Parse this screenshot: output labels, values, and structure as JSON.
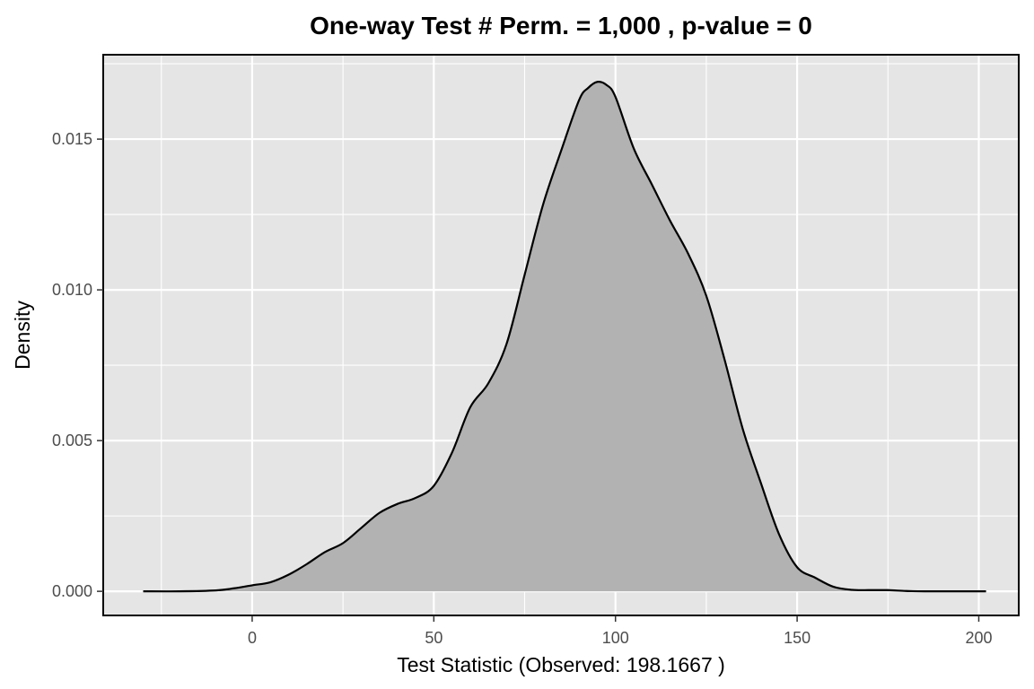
{
  "chart_data": {
    "type": "area",
    "title": "One-way Test # Perm. = 1,000 , p-value = 0",
    "xlabel": "Test Statistic (Observed: 198.1667 )",
    "ylabel": "Density",
    "xlim": [
      -41,
      211
    ],
    "ylim": [
      -0.0008,
      0.0178
    ],
    "x_ticks": [
      0,
      50,
      100,
      150,
      200
    ],
    "x_tick_labels": [
      "0",
      "50",
      "100",
      "150",
      "200"
    ],
    "y_ticks": [
      0,
      0.005,
      0.01,
      0.015
    ],
    "y_tick_labels": [
      "0.000",
      "0.005",
      "0.010",
      "0.015"
    ],
    "grid": true,
    "legend": "none",
    "colors": {
      "panel_background": "#e5e5e5",
      "grid_line": "#ffffff",
      "fill": "#b2b2b2",
      "curve": "#000000",
      "border": "#000000"
    },
    "series": [
      {
        "x": [
          -30,
          -20,
          -10,
          -5,
          0,
          5,
          10,
          15,
          20,
          25,
          30,
          35,
          40,
          45,
          50,
          55,
          60,
          65,
          70,
          75,
          80,
          85,
          90,
          92.5,
          95,
          97.5,
          100,
          105,
          110,
          115,
          120,
          125,
          130,
          135,
          140,
          145,
          150,
          155,
          160,
          165,
          170,
          175,
          180,
          185,
          190,
          195,
          202
        ],
        "y": [
          0.0,
          0.0,
          3e-05,
          0.0001,
          0.0002,
          0.0003,
          0.00055,
          0.0009,
          0.0013,
          0.0016,
          0.0021,
          0.0026,
          0.0029,
          0.0031,
          0.0035,
          0.0046,
          0.0061,
          0.0069,
          0.0082,
          0.0105,
          0.0128,
          0.0146,
          0.0163,
          0.0167,
          0.0169,
          0.0168,
          0.0164,
          0.0147,
          0.0135,
          0.0123,
          0.0112,
          0.0098,
          0.0077,
          0.0054,
          0.0036,
          0.0019,
          0.0008,
          0.00045,
          0.00015,
          5e-05,
          4e-05,
          4e-05,
          1e-05,
          0.0,
          0.0,
          0.0,
          0.0
        ]
      }
    ]
  }
}
